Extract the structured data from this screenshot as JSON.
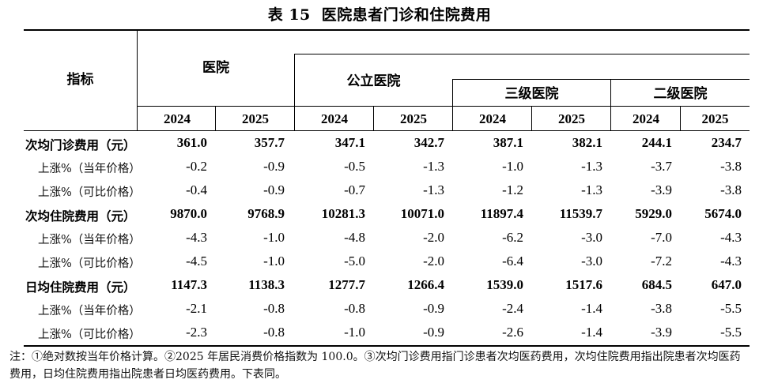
{
  "table": {
    "number": "表 15",
    "title": "医院患者门诊和住院费用",
    "indicator_header": "指标",
    "groups": {
      "hospital": "医院",
      "public": "公立医院",
      "tier3": "三级医院",
      "tier2": "二级医院"
    },
    "years": [
      "2024",
      "2025",
      "2024",
      "2025",
      "2024",
      "2025",
      "2024",
      "2025"
    ],
    "rows": [
      {
        "label": "次均门诊费用（元）",
        "kind": "main",
        "values": [
          "361.0",
          "357.7",
          "347.1",
          "342.7",
          "387.1",
          "382.1",
          "244.1",
          "234.7"
        ]
      },
      {
        "label": "上涨%（当年价格）",
        "kind": "sub",
        "values": [
          "-0.2",
          "-0.9",
          "-0.5",
          "-1.3",
          "-1.0",
          "-1.3",
          "-3.7",
          "-3.8"
        ]
      },
      {
        "label": "上涨%（可比价格）",
        "kind": "sub",
        "values": [
          "-0.4",
          "-0.9",
          "-0.7",
          "-1.3",
          "-1.2",
          "-1.3",
          "-3.9",
          "-3.8"
        ]
      },
      {
        "label": "次均住院费用（元）",
        "kind": "main",
        "values": [
          "9870.0",
          "9768.9",
          "10281.3",
          "10071.0",
          "11897.4",
          "11539.7",
          "5929.0",
          "5674.0"
        ]
      },
      {
        "label": "上涨%（当年价格）",
        "kind": "sub",
        "values": [
          "-4.3",
          "-1.0",
          "-4.8",
          "-2.0",
          "-6.2",
          "-3.0",
          "-7.0",
          "-4.3"
        ]
      },
      {
        "label": "上涨%（可比价格）",
        "kind": "sub",
        "values": [
          "-4.5",
          "-1.0",
          "-5.0",
          "-2.0",
          "-6.4",
          "-3.0",
          "-7.2",
          "-4.3"
        ]
      },
      {
        "label": "日均住院费用（元）",
        "kind": "main",
        "values": [
          "1147.3",
          "1138.3",
          "1277.7",
          "1266.4",
          "1539.0",
          "1517.6",
          "684.5",
          "647.0"
        ]
      },
      {
        "label": "上涨%（当年价格）",
        "kind": "sub",
        "values": [
          "-2.1",
          "-0.8",
          "-0.8",
          "-0.9",
          "-2.4",
          "-1.4",
          "-3.8",
          "-5.5"
        ]
      },
      {
        "label": "上涨%（可比价格）",
        "kind": "sub",
        "values": [
          "-2.3",
          "-0.8",
          "-1.0",
          "-0.9",
          "-2.6",
          "-1.4",
          "-3.9",
          "-5.5"
        ]
      }
    ],
    "note": "注：①绝对数按当年价格计算。②2025 年居民消费价格指数为 100.0。③次均门诊费用指门诊患者次均医药费用，次均住院费用指出院患者次均医药费用，日均住院费用指出院患者日均医药费用。下表同。"
  }
}
